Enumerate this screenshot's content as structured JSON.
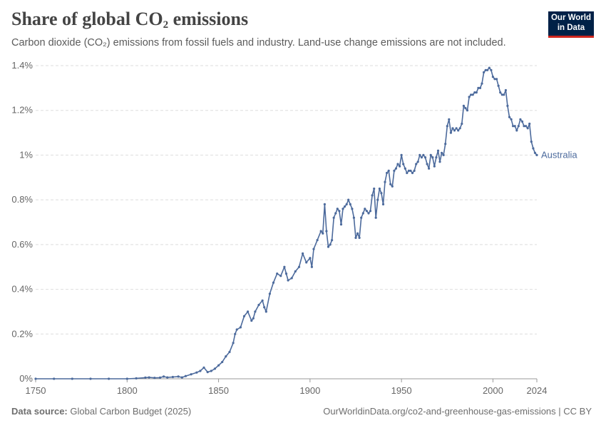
{
  "header": {
    "title": "Share of global CO",
    "title_sub": "2",
    "title_suffix": " emissions",
    "subtitle": "Carbon dioxide (CO₂) emissions from fossil fuels and industry. Land-use change emissions are not included.",
    "logo_line1": "Our World",
    "logo_line2": "in Data"
  },
  "footer": {
    "source_label": "Data source:",
    "source_text": "Global Carbon Budget (2025)",
    "right_text": "OurWorldinData.org/co2-and-greenhouse-gas-emissions | CC BY"
  },
  "colors": {
    "series": "#4c6a9c",
    "grid": "#dddddd",
    "axis": "#999999",
    "logo_bg": "#002147",
    "logo_accent": "#ce261e"
  },
  "chart_data": {
    "type": "line",
    "title": "Share of global CO₂ emissions",
    "xlim": [
      1750,
      2024
    ],
    "ylim": [
      0,
      1.4
    ],
    "x_ticks": [
      1750,
      1800,
      1850,
      1900,
      1950,
      2000,
      2024
    ],
    "y_ticks": [
      0,
      0.2,
      0.4,
      0.6,
      0.8,
      1,
      1.2,
      1.4
    ],
    "y_tick_labels": [
      "0%",
      "0.2%",
      "0.4%",
      "0.6%",
      "0.8%",
      "1%",
      "1.2%",
      "1.4%"
    ],
    "grid": "horizontal dashed",
    "series": [
      {
        "name": "Australia",
        "points": [
          [
            1750,
            0
          ],
          [
            1760,
            0
          ],
          [
            1770,
            0
          ],
          [
            1780,
            0
          ],
          [
            1790,
            0
          ],
          [
            1800,
            0
          ],
          [
            1805,
            0.002
          ],
          [
            1810,
            0.005
          ],
          [
            1812,
            0.006
          ],
          [
            1815,
            0.004
          ],
          [
            1818,
            0.005
          ],
          [
            1820,
            0.01
          ],
          [
            1822,
            0.006
          ],
          [
            1825,
            0.008
          ],
          [
            1828,
            0.01
          ],
          [
            1830,
            0.006
          ],
          [
            1832,
            0.012
          ],
          [
            1835,
            0.02
          ],
          [
            1838,
            0.028
          ],
          [
            1840,
            0.035
          ],
          [
            1842,
            0.05
          ],
          [
            1844,
            0.03
          ],
          [
            1846,
            0.035
          ],
          [
            1848,
            0.045
          ],
          [
            1850,
            0.06
          ],
          [
            1852,
            0.075
          ],
          [
            1854,
            0.1
          ],
          [
            1856,
            0.12
          ],
          [
            1858,
            0.16
          ],
          [
            1859,
            0.2
          ],
          [
            1860,
            0.22
          ],
          [
            1862,
            0.23
          ],
          [
            1864,
            0.28
          ],
          [
            1866,
            0.3
          ],
          [
            1868,
            0.26
          ],
          [
            1869,
            0.27
          ],
          [
            1870,
            0.3
          ],
          [
            1872,
            0.33
          ],
          [
            1874,
            0.35
          ],
          [
            1875,
            0.32
          ],
          [
            1876,
            0.3
          ],
          [
            1878,
            0.38
          ],
          [
            1880,
            0.43
          ],
          [
            1882,
            0.47
          ],
          [
            1884,
            0.46
          ],
          [
            1886,
            0.5
          ],
          [
            1887,
            0.47
          ],
          [
            1888,
            0.44
          ],
          [
            1890,
            0.45
          ],
          [
            1892,
            0.48
          ],
          [
            1894,
            0.5
          ],
          [
            1896,
            0.56
          ],
          [
            1898,
            0.52
          ],
          [
            1900,
            0.54
          ],
          [
            1901,
            0.5
          ],
          [
            1902,
            0.58
          ],
          [
            1904,
            0.62
          ],
          [
            1906,
            0.66
          ],
          [
            1907,
            0.65
          ],
          [
            1908,
            0.78
          ],
          [
            1909,
            0.66
          ],
          [
            1910,
            0.59
          ],
          [
            1911,
            0.6
          ],
          [
            1912,
            0.62
          ],
          [
            1913,
            0.72
          ],
          [
            1914,
            0.74
          ],
          [
            1915,
            0.76
          ],
          [
            1916,
            0.75
          ],
          [
            1917,
            0.69
          ],
          [
            1918,
            0.76
          ],
          [
            1919,
            0.77
          ],
          [
            1920,
            0.78
          ],
          [
            1921,
            0.8
          ],
          [
            1922,
            0.78
          ],
          [
            1923,
            0.76
          ],
          [
            1924,
            0.72
          ],
          [
            1925,
            0.63
          ],
          [
            1926,
            0.65
          ],
          [
            1927,
            0.63
          ],
          [
            1928,
            0.72
          ],
          [
            1929,
            0.74
          ],
          [
            1930,
            0.76
          ],
          [
            1931,
            0.75
          ],
          [
            1932,
            0.74
          ],
          [
            1933,
            0.75
          ],
          [
            1934,
            0.82
          ],
          [
            1935,
            0.85
          ],
          [
            1936,
            0.72
          ],
          [
            1937,
            0.8
          ],
          [
            1938,
            0.85
          ],
          [
            1939,
            0.83
          ],
          [
            1940,
            0.78
          ],
          [
            1941,
            0.88
          ],
          [
            1942,
            0.92
          ],
          [
            1943,
            0.93
          ],
          [
            1944,
            0.87
          ],
          [
            1945,
            0.86
          ],
          [
            1946,
            0.93
          ],
          [
            1947,
            0.94
          ],
          [
            1948,
            0.96
          ],
          [
            1949,
            0.95
          ],
          [
            1950,
            1.0
          ],
          [
            1951,
            0.96
          ],
          [
            1952,
            0.94
          ],
          [
            1953,
            0.92
          ],
          [
            1954,
            0.93
          ],
          [
            1955,
            0.93
          ],
          [
            1956,
            0.92
          ],
          [
            1957,
            0.93
          ],
          [
            1958,
            0.96
          ],
          [
            1959,
            0.97
          ],
          [
            1960,
            1.0
          ],
          [
            1961,
            0.99
          ],
          [
            1962,
            1.0
          ],
          [
            1963,
            0.99
          ],
          [
            1964,
            0.96
          ],
          [
            1965,
            0.94
          ],
          [
            1966,
            1.0
          ],
          [
            1967,
            0.99
          ],
          [
            1968,
            0.95
          ],
          [
            1969,
            0.99
          ],
          [
            1970,
            1.02
          ],
          [
            1971,
            0.97
          ],
          [
            1972,
            1.01
          ],
          [
            1973,
            1.0
          ],
          [
            1974,
            1.05
          ],
          [
            1975,
            1.13
          ],
          [
            1976,
            1.16
          ],
          [
            1977,
            1.1
          ],
          [
            1978,
            1.12
          ],
          [
            1979,
            1.11
          ],
          [
            1980,
            1.12
          ],
          [
            1981,
            1.11
          ],
          [
            1982,
            1.12
          ],
          [
            1983,
            1.14
          ],
          [
            1984,
            1.22
          ],
          [
            1985,
            1.21
          ],
          [
            1986,
            1.2
          ],
          [
            1987,
            1.26
          ],
          [
            1988,
            1.27
          ],
          [
            1989,
            1.27
          ],
          [
            1990,
            1.28
          ],
          [
            1991,
            1.28
          ],
          [
            1992,
            1.3
          ],
          [
            1993,
            1.3
          ],
          [
            1994,
            1.32
          ],
          [
            1995,
            1.37
          ],
          [
            1996,
            1.38
          ],
          [
            1997,
            1.38
          ],
          [
            1998,
            1.39
          ],
          [
            1999,
            1.38
          ],
          [
            2000,
            1.35
          ],
          [
            2001,
            1.34
          ],
          [
            2002,
            1.34
          ],
          [
            2003,
            1.31
          ],
          [
            2004,
            1.28
          ],
          [
            2005,
            1.27
          ],
          [
            2006,
            1.27
          ],
          [
            2007,
            1.29
          ],
          [
            2008,
            1.22
          ],
          [
            2009,
            1.17
          ],
          [
            2010,
            1.16
          ],
          [
            2011,
            1.13
          ],
          [
            2012,
            1.13
          ],
          [
            2013,
            1.11
          ],
          [
            2014,
            1.13
          ],
          [
            2015,
            1.16
          ],
          [
            2016,
            1.15
          ],
          [
            2017,
            1.13
          ],
          [
            2018,
            1.13
          ],
          [
            2019,
            1.12
          ],
          [
            2020,
            1.14
          ],
          [
            2021,
            1.06
          ],
          [
            2022,
            1.03
          ],
          [
            2023,
            1.01
          ],
          [
            2024,
            1.0
          ]
        ]
      }
    ]
  }
}
